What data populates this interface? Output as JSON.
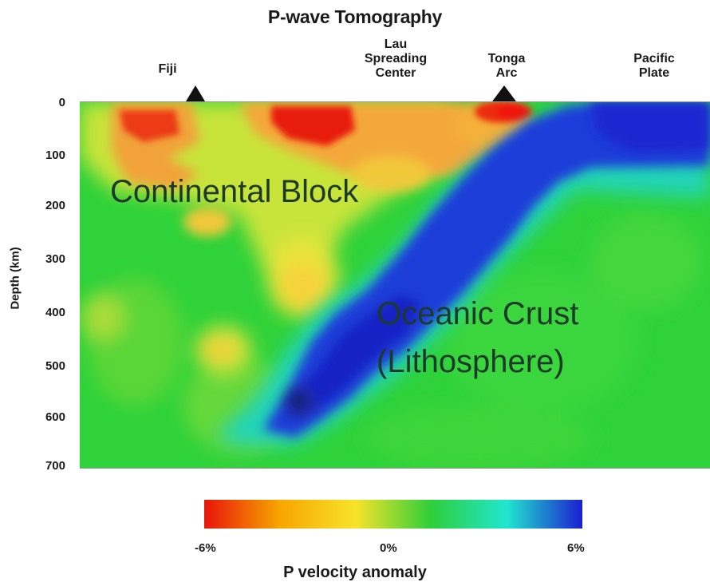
{
  "title": "P-wave Tomography",
  "locations": {
    "fiji": "Fiji",
    "lau_line1": "Lau",
    "lau_line2": "Spreading",
    "lau_line3": "Center",
    "tonga_line1": "Tonga",
    "tonga_line2": "Arc",
    "pacific_line1": "Pacific",
    "pacific_line2": "Plate"
  },
  "y_axis": {
    "label": "Depth (km)",
    "ticks": [
      "0",
      "100",
      "200",
      "300",
      "400",
      "500",
      "600",
      "700"
    ]
  },
  "regions": {
    "continental": "Continental Block",
    "oceanic_line1": "Oceanic Crust",
    "oceanic_line2": "(Lithosphere)"
  },
  "colorbar": {
    "min_label": "-6%",
    "mid_label": "0%",
    "max_label": "6%",
    "title": "P velocity anomaly",
    "colors": [
      "#e8140a",
      "#f7a600",
      "#f7e32a",
      "#2ecf3a",
      "#21e6cf",
      "#1a1ecf"
    ]
  }
}
